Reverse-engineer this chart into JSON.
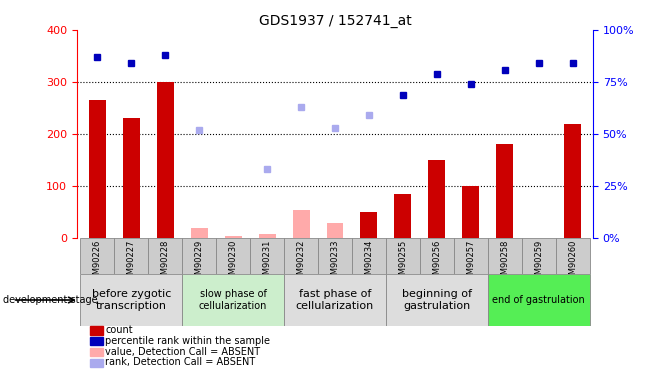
{
  "title": "GDS1937 / 152741_at",
  "samples": [
    "GSM90226",
    "GSM90227",
    "GSM90228",
    "GSM90229",
    "GSM90230",
    "GSM90231",
    "GSM90232",
    "GSM90233",
    "GSM90234",
    "GSM90255",
    "GSM90256",
    "GSM90257",
    "GSM90258",
    "GSM90259",
    "GSM90260"
  ],
  "bar_values": [
    265,
    230,
    300,
    null,
    null,
    null,
    null,
    null,
    50,
    85,
    150,
    100,
    180,
    null,
    220
  ],
  "bar_absent_values": [
    null,
    null,
    null,
    20,
    5,
    8,
    55,
    30,
    null,
    null,
    null,
    null,
    null,
    null,
    null
  ],
  "rank_present": [
    87,
    84,
    88,
    null,
    null,
    null,
    null,
    null,
    null,
    69,
    79,
    74,
    81,
    84,
    84
  ],
  "rank_absent": [
    null,
    null,
    null,
    52,
    null,
    33,
    63,
    53,
    59,
    null,
    null,
    null,
    null,
    null,
    null
  ],
  "bar_color_present": "#cc0000",
  "bar_color_absent": "#ffaaaa",
  "rank_color_present": "#0000bb",
  "rank_color_absent": "#aaaaee",
  "ylim_left": [
    0,
    400
  ],
  "ylim_right": [
    0,
    100
  ],
  "yticks_left": [
    0,
    100,
    200,
    300,
    400
  ],
  "yticks_right": [
    0,
    25,
    50,
    75,
    100
  ],
  "ytick_labels_right": [
    "0%",
    "25%",
    "50%",
    "75%",
    "100%"
  ],
  "groups": [
    {
      "label": "before zygotic\ntranscription",
      "samples_idx": [
        0,
        1,
        2
      ],
      "color": "#dddddd",
      "font_size": 8
    },
    {
      "label": "slow phase of\ncellularization",
      "samples_idx": [
        3,
        4,
        5
      ],
      "color": "#cceecc",
      "font_size": 7
    },
    {
      "label": "fast phase of\ncellularization",
      "samples_idx": [
        6,
        7,
        8
      ],
      "color": "#dddddd",
      "font_size": 8
    },
    {
      "label": "beginning of\ngastrulation",
      "samples_idx": [
        9,
        10,
        11
      ],
      "color": "#dddddd",
      "font_size": 8
    },
    {
      "label": "end of gastrulation",
      "samples_idx": [
        12,
        13,
        14
      ],
      "color": "#55ee55",
      "font_size": 7
    }
  ],
  "dev_stage_label": "development stage",
  "legend_items": [
    {
      "label": "count",
      "color": "#cc0000"
    },
    {
      "label": "percentile rank within the sample",
      "color": "#0000bb"
    },
    {
      "label": "value, Detection Call = ABSENT",
      "color": "#ffaaaa"
    },
    {
      "label": "rank, Detection Call = ABSENT",
      "color": "#aaaaee"
    }
  ],
  "bar_width": 0.5,
  "marker_size": 5
}
